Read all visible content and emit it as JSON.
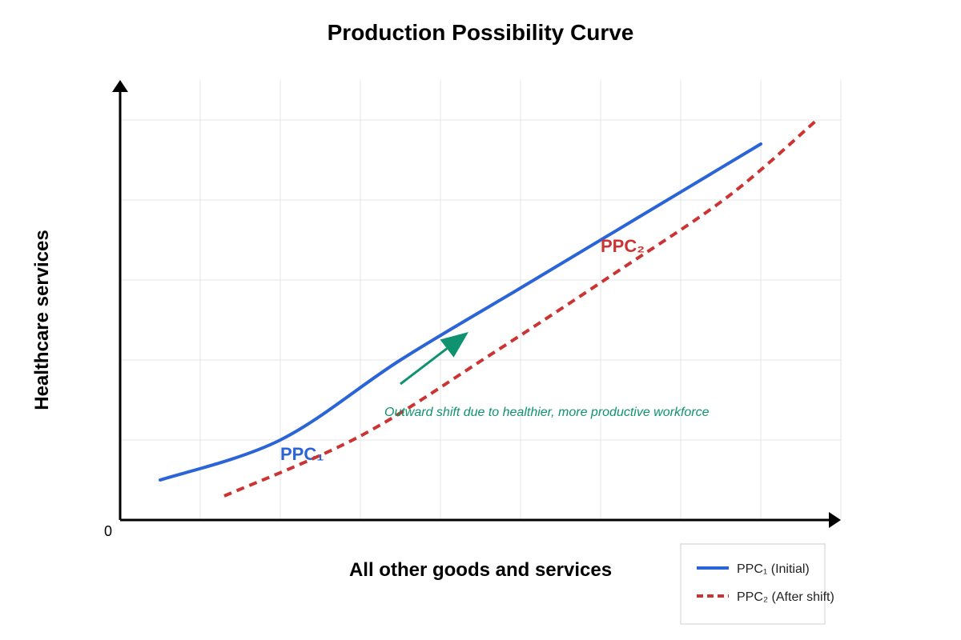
{
  "chart_data": {
    "type": "line",
    "title": "Production Possibility Curve",
    "xlabel": "All other goods and services",
    "ylabel": "Healthcare services",
    "origin_label": "0",
    "xlim": [
      0,
      9
    ],
    "ylim": [
      0,
      5.5
    ],
    "grid": true,
    "legend_position": "bottom-right",
    "series": [
      {
        "name": "PPC₁ (Initial)",
        "curve_label": "PPC₁",
        "color": "#2b64d6",
        "style": "solid",
        "points": [
          [
            0.5,
            0.5
          ],
          [
            2.0,
            1.0
          ],
          [
            3.5,
            2.0
          ],
          [
            5.0,
            2.9
          ],
          [
            6.5,
            3.8
          ],
          [
            8.0,
            4.7
          ]
        ]
      },
      {
        "name": "PPC₂ (After shift)",
        "curve_label": "PPC₂",
        "color": "#cc3333",
        "style": "dashed",
        "points": [
          [
            1.3,
            0.3
          ],
          [
            3.0,
            1.05
          ],
          [
            4.6,
            2.05
          ],
          [
            6.2,
            3.1
          ],
          [
            7.6,
            4.05
          ],
          [
            8.7,
            5.0
          ]
        ]
      }
    ],
    "annotation": {
      "text": "Outward shift due to healthier, more productive workforce",
      "color": "#0f9270",
      "arrow_from": [
        3.5,
        1.7
      ],
      "arrow_to": [
        4.35,
        2.35
      ]
    }
  }
}
